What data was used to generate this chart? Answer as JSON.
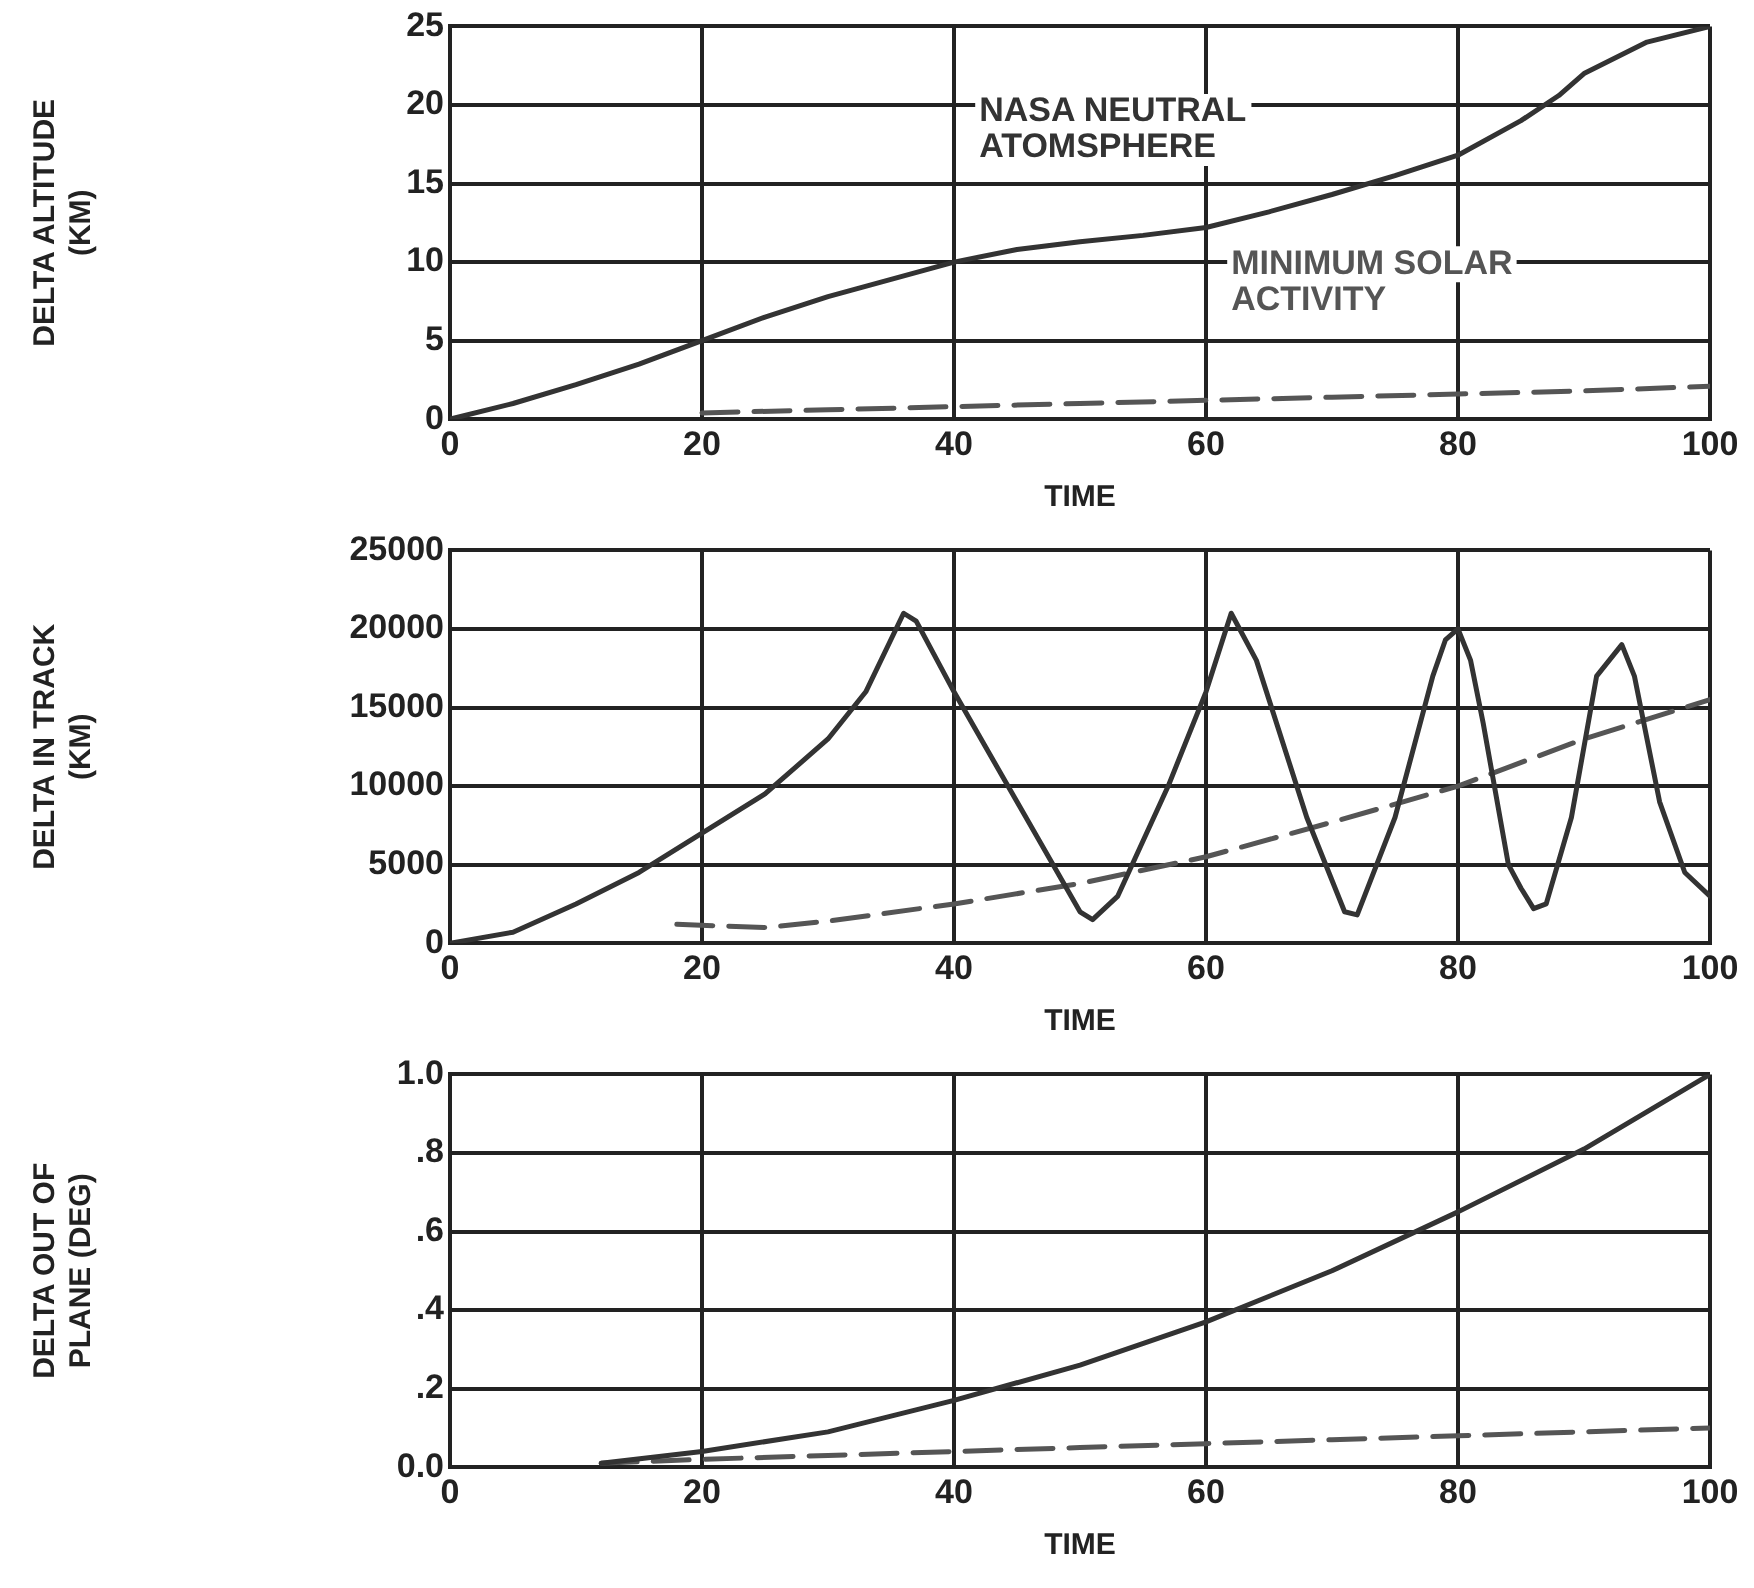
{
  "chart_data": [
    {
      "type": "line",
      "xlabel": "TIME",
      "ylabel": "DELTA ALTITUDE (KM)",
      "xlim": [
        0,
        100
      ],
      "xticks": [
        0,
        20,
        40,
        60,
        80,
        100
      ],
      "ylim": [
        0,
        25
      ],
      "yticks": [
        0,
        5,
        10,
        15,
        20,
        25
      ],
      "grid": true,
      "legend": false,
      "series": [
        {
          "name": "NASA NEUTRAL ATOMSPHERE",
          "color": "#333333",
          "line_style": "solid",
          "x": [
            0,
            5,
            10,
            15,
            20,
            25,
            30,
            35,
            40,
            45,
            50,
            55,
            60,
            65,
            70,
            75,
            80,
            85,
            88,
            90,
            95,
            100
          ],
          "values": [
            0,
            1,
            2.2,
            3.5,
            5,
            6.5,
            7.8,
            8.9,
            10,
            10.8,
            11.3,
            11.7,
            12.2,
            13.2,
            14.3,
            15.5,
            16.8,
            19,
            20.6,
            22,
            24,
            25
          ]
        },
        {
          "name": "MINIMUM SOLAR ACTIVITY",
          "color": "#555555",
          "line_style": "dashed",
          "x": [
            20,
            30,
            40,
            50,
            60,
            70,
            80,
            90,
            100
          ],
          "values": [
            0.4,
            0.6,
            0.8,
            1,
            1.2,
            1.4,
            1.6,
            1.8,
            2.1
          ]
        }
      ]
    },
    {
      "type": "line",
      "xlabel": "TIME",
      "ylabel": "DELTA IN TRACK (KM)",
      "xlim": [
        0,
        100
      ],
      "xticks": [
        0,
        20,
        40,
        60,
        80,
        100
      ],
      "ylim": [
        0,
        25000
      ],
      "yticks": [
        0,
        5000,
        10000,
        15000,
        20000,
        25000
      ],
      "grid": true,
      "legend": false,
      "series": [
        {
          "color": "#333333",
          "line_style": "solid",
          "x": [
            0,
            5,
            10,
            15,
            20,
            25,
            30,
            33,
            36,
            37,
            40,
            45,
            50,
            51,
            53,
            57,
            60,
            62,
            64,
            68,
            71,
            72,
            75,
            78,
            79,
            80,
            81,
            82,
            84,
            85,
            86,
            87,
            89,
            91,
            93,
            94,
            96,
            98,
            100
          ],
          "values": [
            0,
            700,
            2500,
            4500,
            7000,
            9500,
            13000,
            16000,
            21000,
            20500,
            16000,
            9000,
            2000,
            1500,
            3000,
            10000,
            16000,
            21000,
            18000,
            8000,
            2000,
            1800,
            8000,
            17000,
            19300,
            20000,
            18000,
            14000,
            5000,
            3500,
            2200,
            2500,
            8000,
            17000,
            19000,
            17000,
            9000,
            4500,
            3000
          ]
        },
        {
          "color": "#555555",
          "line_style": "dashed",
          "x": [
            18,
            25,
            30,
            40,
            50,
            60,
            70,
            80,
            90,
            100
          ],
          "values": [
            1200,
            1000,
            1400,
            2500,
            3800,
            5500,
            7700,
            10000,
            13000,
            15500
          ]
        }
      ]
    },
    {
      "type": "line",
      "xlabel": "TIME",
      "ylabel": "DELTA OUT OF PLANE (DEG)",
      "xlim": [
        0,
        100
      ],
      "xticks": [
        0,
        20,
        40,
        60,
        80,
        100
      ],
      "ylim": [
        0,
        1
      ],
      "yticks": [
        {
          "value": 0,
          "label": "0.0"
        },
        {
          "value": 0.2,
          "label": ".2"
        },
        {
          "value": 0.4,
          "label": ".4"
        },
        {
          "value": 0.6,
          "label": ".6"
        },
        {
          "value": 0.8,
          "label": ".8"
        },
        {
          "value": 1,
          "label": "1.0"
        }
      ],
      "grid": true,
      "legend": false,
      "series": [
        {
          "color": "#333333",
          "line_style": "solid",
          "x": [
            12,
            20,
            30,
            40,
            50,
            60,
            70,
            80,
            90,
            100
          ],
          "values": [
            0.01,
            0.04,
            0.09,
            0.17,
            0.26,
            0.37,
            0.5,
            0.65,
            0.81,
            1.0
          ]
        },
        {
          "color": "#555555",
          "line_style": "dashed",
          "x": [
            12,
            20,
            30,
            40,
            50,
            60,
            70,
            80,
            90,
            100
          ],
          "values": [
            0.01,
            0.02,
            0.03,
            0.04,
            0.05,
            0.06,
            0.07,
            0.08,
            0.09,
            0.1
          ]
        }
      ]
    }
  ]
}
